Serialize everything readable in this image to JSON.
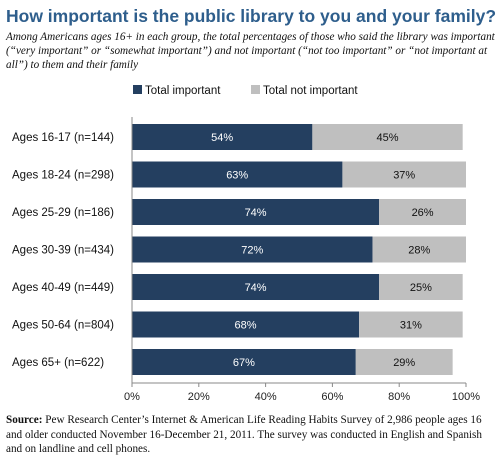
{
  "chart_data": {
    "type": "bar",
    "orientation": "horizontal",
    "stacked": true,
    "title": "How important is the public library to you and your family?",
    "subtitle": "Among Americans ages 16+ in each group, the total percentages of those who said the library was important (“very important” or “somewhat important”) and not important (“not too important” or “not important at all”) to them and their family",
    "categories": [
      "Ages 16-17 (n=144)",
      "Ages 18-24 (n=298)",
      "Ages 25-29 (n=186)",
      "Ages 30-39 (n=434)",
      "Ages 40-49 (n=449)",
      "Ages 50-64 (n=804)",
      "Ages 65+ (n=622)"
    ],
    "series": [
      {
        "name": "Total important",
        "color": "#243f60",
        "values": [
          54,
          63,
          74,
          72,
          74,
          68,
          67
        ],
        "labels": [
          "54%",
          "63%",
          "74%",
          "72%",
          "74%",
          "68%",
          "67%"
        ]
      },
      {
        "name": "Total not important",
        "color": "#bfbfbf",
        "values": [
          45,
          37,
          26,
          28,
          25,
          31,
          29
        ],
        "labels": [
          "45%",
          "37%",
          "26%",
          "28%",
          "25%",
          "31%",
          "29%"
        ]
      }
    ],
    "xlim": [
      0,
      100
    ],
    "xticks": [
      0,
      20,
      40,
      60,
      80,
      100
    ],
    "xtick_labels": [
      "0%",
      "20%",
      "40%",
      "60%",
      "80%",
      "100%"
    ],
    "legend_position": "top",
    "grid": false
  },
  "source": {
    "label": "Source:",
    "text": " Pew Research Center’s Internet & American Life Reading Habits Survey of 2,986 people ages 16 and older conducted November 16-December 21, 2011. The survey was conducted in English and Spanish and on landline and cell phones."
  }
}
